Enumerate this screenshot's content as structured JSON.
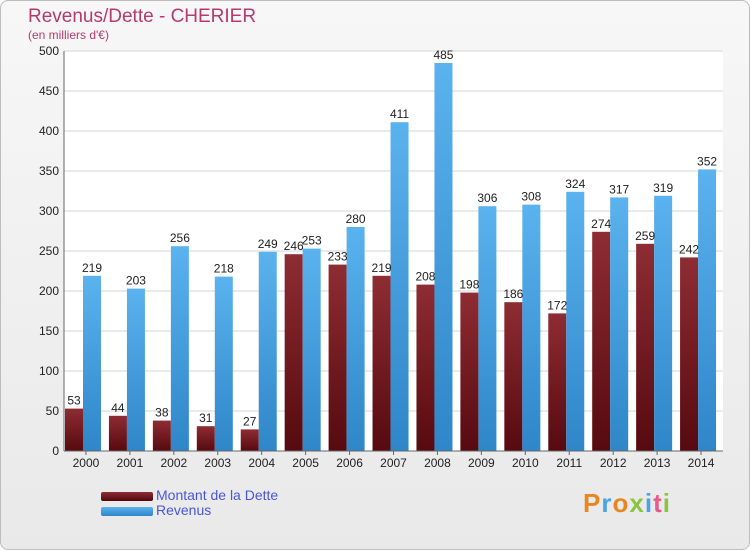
{
  "title": "Revenus/Dette - CHERIER",
  "subtitle": "(en milliers d'€)",
  "logo": {
    "text": "Proxiti"
  },
  "colors": {
    "dette": "#7a1c22",
    "revenus": "#4aa3e4"
  },
  "chart_data": {
    "type": "bar",
    "title": "Revenus/Dette - CHERIER",
    "subtitle": "(en milliers d'€)",
    "categories": [
      "2000",
      "2001",
      "2002",
      "2003",
      "2004",
      "2005",
      "2006",
      "2007",
      "2008",
      "2009",
      "2010",
      "2011",
      "2012",
      "2013",
      "2014"
    ],
    "series": [
      {
        "name": "Montant de la Dette",
        "values": [
          53,
          44,
          38,
          31,
          27,
          246,
          233,
          219,
          208,
          198,
          186,
          172,
          274,
          259,
          242
        ]
      },
      {
        "name": "Revenus",
        "values": [
          219,
          203,
          256,
          218,
          249,
          253,
          280,
          411,
          485,
          306,
          308,
          324,
          317,
          319,
          352
        ]
      }
    ],
    "ylim": [
      0,
      500
    ],
    "yticks": [
      0,
      50,
      100,
      150,
      200,
      250,
      300,
      350,
      400,
      450,
      500
    ],
    "grid": true,
    "legend": "bottom-left"
  }
}
